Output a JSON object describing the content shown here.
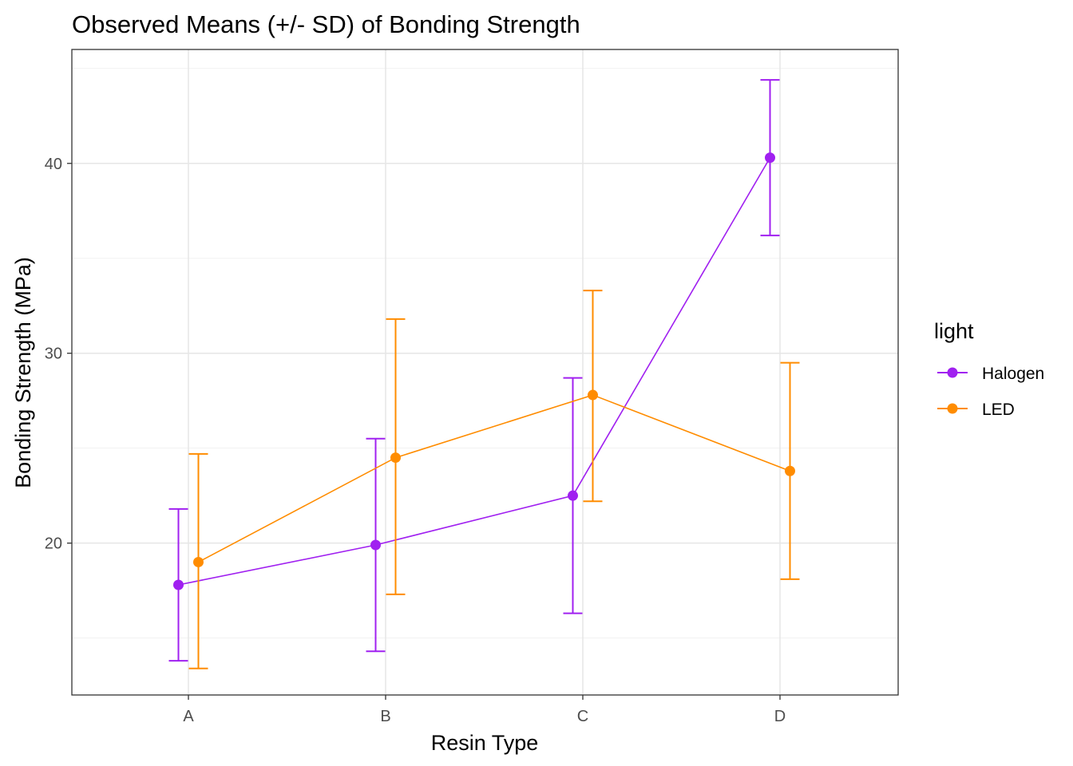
{
  "chart_data": {
    "type": "line",
    "title": "Observed Means (+/- SD) of Bonding Strength",
    "xlabel": "Resin Type",
    "ylabel": "Bonding Strength (MPa)",
    "categories": [
      "A",
      "B",
      "C",
      "D"
    ],
    "ylim": [
      12.0,
      46.0
    ],
    "yticks": [
      20,
      30,
      40
    ],
    "grid": true,
    "legend": {
      "title": "light",
      "position": "right"
    },
    "error_bars": "SD",
    "series": [
      {
        "name": "Halogen",
        "color": "#a020f0",
        "mean": [
          17.8,
          19.9,
          22.5,
          40.3
        ],
        "lower": [
          13.8,
          14.3,
          16.3,
          36.2
        ],
        "upper": [
          21.8,
          25.5,
          28.7,
          44.4
        ]
      },
      {
        "name": "LED",
        "color": "#ff8c00",
        "mean": [
          19.0,
          24.5,
          27.8,
          23.8
        ],
        "lower": [
          13.4,
          17.3,
          22.2,
          18.1
        ],
        "upper": [
          24.7,
          31.8,
          33.3,
          29.5
        ]
      }
    ]
  }
}
